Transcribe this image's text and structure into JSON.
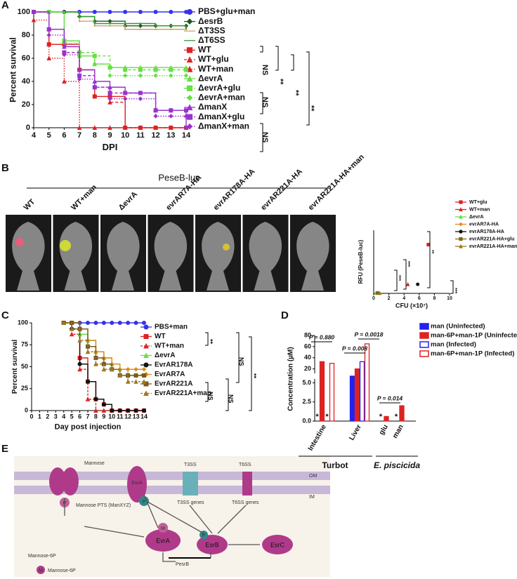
{
  "panel_labels": [
    "A",
    "B",
    "C",
    "D",
    "E"
  ],
  "chart_data": [
    {
      "type": "survival",
      "x_label": "DPI",
      "y_label": "Percent survival",
      "x": [
        4,
        5,
        6,
        7,
        8,
        9,
        10,
        11,
        12,
        13,
        14
      ],
      "xlim": [
        4,
        14
      ],
      "xticks": [
        4,
        5,
        6,
        7,
        8,
        9,
        10,
        11,
        12,
        13,
        14
      ],
      "ylim": [
        0,
        100
      ],
      "yticks": [
        0,
        20,
        40,
        60,
        80,
        100
      ],
      "series": [
        {
          "name": "PBS+glu+man",
          "color": "#3333ee",
          "marker": "circle",
          "dash": "",
          "values": [
            100,
            100,
            100,
            100,
            100,
            100,
            100,
            100,
            100,
            100,
            100
          ]
        },
        {
          "name": "ΔesrB",
          "color": "#1e5a1e",
          "marker": "diamond",
          "dash": "",
          "values": [
            100,
            100,
            100,
            96,
            92,
            92,
            88,
            88,
            88,
            88,
            88
          ]
        },
        {
          "name": "ΔT3SS",
          "color": "#d2a070",
          "marker": "none",
          "dash": "",
          "values": [
            100,
            100,
            100,
            92,
            88,
            88,
            85,
            85,
            85,
            85,
            85
          ]
        },
        {
          "name": "ΔT6SS",
          "color": "#2e9e2e",
          "marker": "none",
          "dash": "",
          "values": [
            100,
            100,
            100,
            96,
            90,
            90,
            90,
            90,
            88,
            88,
            86
          ]
        },
        {
          "name": "WT",
          "color": "#dd2222",
          "marker": "square",
          "dash": "",
          "values": [
            100,
            72,
            72,
            50,
            27,
            27,
            0,
            0,
            0,
            0,
            0
          ]
        },
        {
          "name": "WT+glu",
          "color": "#dd2222",
          "marker": "triangle",
          "dash": "4 3",
          "values": [
            100,
            72,
            65,
            45,
            35,
            22,
            0,
            0,
            0,
            0,
            0
          ]
        },
        {
          "name": "WT+man",
          "color": "#dd2222",
          "marker": "triangle",
          "dash": "1.5 2",
          "values": [
            93,
            60,
            40,
            0,
            0,
            0,
            0,
            0,
            0,
            0,
            0
          ]
        },
        {
          "name": "ΔevrA",
          "color": "#66e044",
          "marker": "triangle",
          "dash": "",
          "values": [
            100,
            100,
            75,
            62,
            55,
            52,
            52,
            52,
            52,
            52,
            52
          ]
        },
        {
          "name": "ΔevrA+glu",
          "color": "#66e044",
          "marker": "square",
          "dash": "4 3",
          "values": [
            100,
            100,
            75,
            65,
            62,
            52,
            50,
            50,
            50,
            50,
            50
          ]
        },
        {
          "name": "ΔevrA+man",
          "color": "#66e044",
          "marker": "diamond",
          "dash": "1.5 2",
          "values": [
            100,
            100,
            73,
            62,
            55,
            45,
            45,
            45,
            45,
            45,
            45
          ]
        },
        {
          "name": "ΔmanX",
          "color": "#9933cc",
          "marker": "triangle",
          "dash": "",
          "values": [
            100,
            85,
            70,
            50,
            40,
            35,
            30,
            30,
            15,
            15,
            0
          ]
        },
        {
          "name": "ΔmanX+glu",
          "color": "#9933cc",
          "marker": "square",
          "dash": "4 3",
          "values": [
            100,
            85,
            65,
            45,
            35,
            30,
            30,
            30,
            15,
            15,
            15
          ]
        },
        {
          "name": "ΔmanX+man",
          "color": "#9933cc",
          "marker": "diamond",
          "dash": "1.5 2",
          "values": [
            100,
            80,
            63,
            42,
            35,
            25,
            25,
            25,
            10,
            10,
            10
          ]
        }
      ],
      "annotations": [
        "NS",
        "**",
        "**",
        "**",
        "NS",
        "NS"
      ]
    },
    {
      "type": "scatter",
      "x_label": "CFU (×10⁷)",
      "y_label": "RFU (PeseB-luc)",
      "xlim": [
        0,
        10
      ],
      "xticks": [
        0,
        2,
        4,
        6,
        8,
        10
      ],
      "ylim": [
        0,
        700
      ],
      "series": [
        {
          "name": "WT+glu",
          "color": "#dd2222",
          "marker": "square",
          "x": [
            7.2
          ],
          "values": [
            540
          ]
        },
        {
          "name": "WT+man",
          "color": "#dd2222",
          "marker": "triangle",
          "x": [
            4.5
          ],
          "values": [
            100
          ]
        },
        {
          "name": "ΔevrA",
          "color": "#66e044",
          "marker": "triangle",
          "x": [
            0.3
          ],
          "values": [
            5
          ]
        },
        {
          "name": "evrAR7A-HA",
          "color": "#e08a1e",
          "marker": "diamond",
          "x": [
            0.5
          ],
          "values": [
            8
          ]
        },
        {
          "name": "evrAR178A-HA",
          "color": "#111111",
          "marker": "circle",
          "x": [
            5.8
          ],
          "values": [
            100
          ]
        },
        {
          "name": "evrAR221A-HA+glu",
          "color": "#7a6a20",
          "marker": "square",
          "x": [
            0.5
          ],
          "values": [
            3
          ]
        },
        {
          "name": "evrAR221A-HA+man",
          "color": "#9a7a20",
          "marker": "triangle",
          "x": [
            0.8
          ],
          "values": [
            2
          ]
        }
      ],
      "annotations": [
        "**",
        "***",
        "***",
        "***"
      ]
    },
    {
      "type": "survival",
      "x_label": "Day post injection",
      "y_label": "Percent survival",
      "x": [
        4,
        5,
        6,
        7,
        8,
        9,
        10,
        11,
        12,
        13,
        14
      ],
      "xlim": [
        0,
        14
      ],
      "xticks": [
        0,
        1,
        2,
        3,
        4,
        5,
        6,
        7,
        8,
        9,
        10,
        11,
        12,
        13,
        14
      ],
      "ylim": [
        0,
        100
      ],
      "yticks": [
        0,
        25,
        50,
        75,
        100
      ],
      "series": [
        {
          "name": "PBS+man",
          "color": "#3333ee",
          "marker": "circle",
          "dash": "",
          "values": [
            100,
            100,
            100,
            100,
            100,
            100,
            100,
            100,
            100,
            100,
            100
          ]
        },
        {
          "name": "WT",
          "color": "#dd2222",
          "marker": "square",
          "dash": "",
          "values": [
            100,
            100,
            60,
            33,
            13,
            7,
            0,
            0,
            0,
            0,
            0
          ]
        },
        {
          "name": "WT+man",
          "color": "#dd2222",
          "marker": "triangle",
          "dash": "3 2",
          "values": [
            100,
            87,
            47,
            13,
            0,
            0,
            0,
            0,
            0,
            0,
            0
          ]
        },
        {
          "name": "ΔevrA",
          "color": "#66e044",
          "marker": "triangle",
          "dash": "",
          "values": [
            100,
            100,
            87,
            80,
            67,
            60,
            53,
            47,
            40,
            40,
            40
          ]
        },
        {
          "name": "EvrAR178A",
          "color": "#111111",
          "marker": "circle",
          "dash": "",
          "values": [
            100,
            93,
            53,
            33,
            13,
            7,
            0,
            0,
            0,
            0,
            0
          ]
        },
        {
          "name": "EvrAR7A",
          "color": "#e08a1e",
          "marker": "diamond",
          "dash": "",
          "values": [
            100,
            100,
            93,
            80,
            67,
            60,
            53,
            47,
            47,
            47,
            47
          ]
        },
        {
          "name": "EvrAR221A",
          "color": "#7a5a20",
          "marker": "square",
          "dash": "",
          "values": [
            100,
            100,
            93,
            73,
            60,
            53,
            47,
            40,
            40,
            40,
            40
          ]
        },
        {
          "name": "EvrAR221A+man",
          "color": "#9a7a20",
          "marker": "triangle",
          "dash": "3 2",
          "values": [
            100,
            93,
            80,
            67,
            53,
            47,
            47,
            40,
            33,
            33,
            33
          ]
        }
      ],
      "annotations": [
        "**",
        "NS",
        "NS",
        "NS",
        "**"
      ]
    },
    {
      "type": "bar",
      "y_label": "Concentration (µM)",
      "categories": [
        "Intestine",
        "Liver",
        "glu",
        "man"
      ],
      "groups": [
        "Turbot",
        "E. piscicida"
      ],
      "ylim": [
        0,
        80
      ],
      "ybreak": [
        5.5,
        12
      ],
      "yticks": [
        {
          "value": 0,
          "label": "0.0"
        },
        {
          "value": 2.5,
          "label": "2.5"
        },
        {
          "value": 5,
          "label": "5.0"
        },
        20,
        40,
        60,
        80
      ],
      "series": [
        {
          "name": "man (Uninfected)",
          "color": "#2222ee",
          "filled": true,
          "values": [
            null,
            7,
            null,
            null
          ]
        },
        {
          "name": "man-6P+man-1P (Uninfected)",
          "color": "#dd2222",
          "filled": true,
          "values": [
            33,
            20,
            0.6,
            2
          ]
        },
        {
          "name": "man (Infected)",
          "color": "#2222ee",
          "filled": false,
          "values": [
            null,
            33,
            null,
            null
          ]
        },
        {
          "name": "man-6P+man-1P (Infected)",
          "color": "#dd2222",
          "filled": false,
          "values": [
            30,
            65,
            null,
            null
          ]
        }
      ],
      "annotations": [
        "P = 0.880",
        "P = 0.008",
        "P = 0.0018",
        "P = 0.014",
        "*",
        "*",
        "*",
        "*"
      ]
    }
  ],
  "panel_b": {
    "header": "PeseB-luc",
    "images": [
      "WT",
      "WT+man",
      "ΔevrA",
      "evrAR7A-HA",
      "evrAR178A-HA",
      "evrAR221A-HA",
      "evrAR221A-HA+man"
    ]
  },
  "diagram": {
    "mannose": "Mannose",
    "pts": "Mannose PTS (ManXYZ)",
    "p1": "P",
    "mannose6p": "Mannose-6P",
    "m": "M",
    "evra": "EvrA",
    "esra": "EsrA",
    "p2": "P",
    "p3": "P",
    "t3ss": "T3SS",
    "t6ss": "T6SS",
    "om": "OM",
    "im": "IM",
    "t3ss_genes": "T3SS genes",
    "t6ss_genes": "T6SS genes",
    "esrb": "EsrB",
    "esrc": "EsrC",
    "pesrb": "PesrB",
    "m2": "M",
    "legend": "Mannose-6P"
  }
}
